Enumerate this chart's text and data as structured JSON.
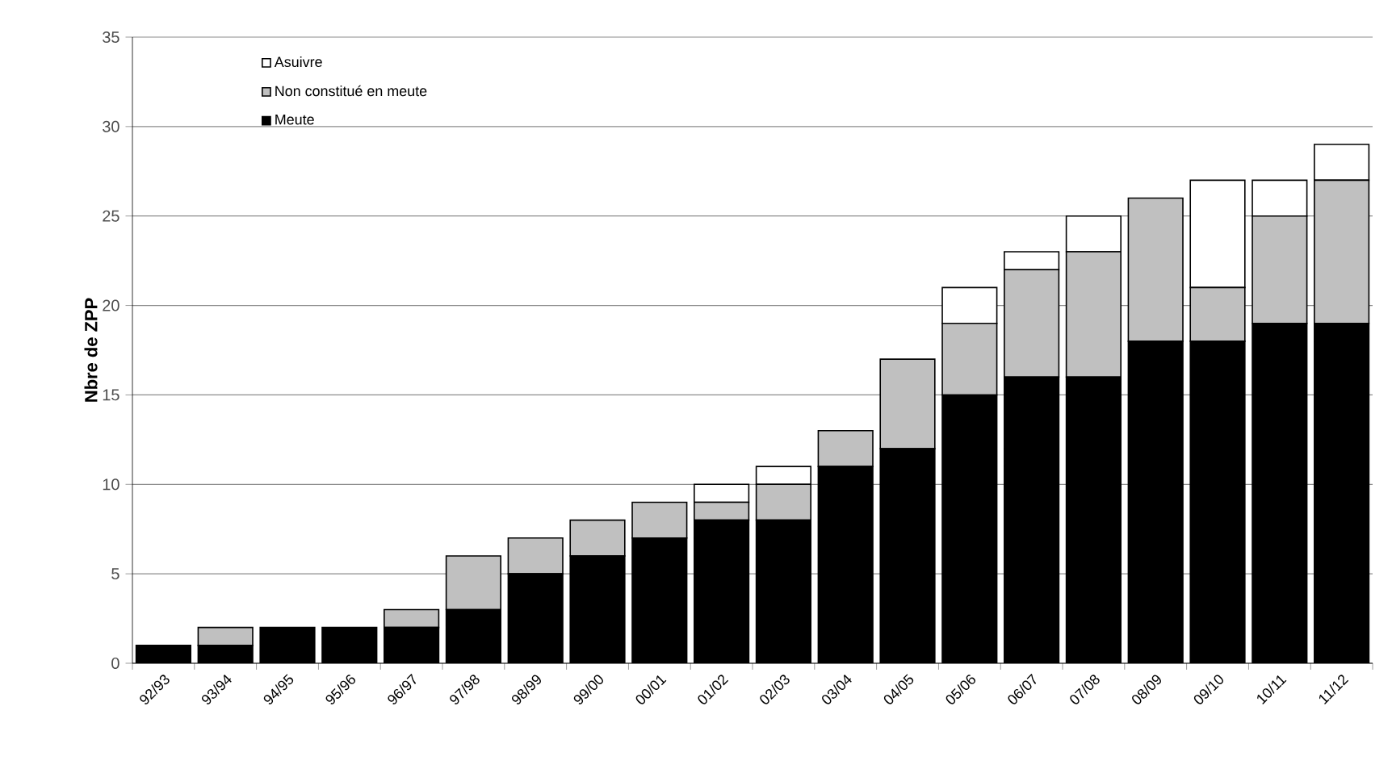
{
  "chart_data": {
    "type": "bar",
    "stacked": true,
    "ylabel": "Nbre de ZPP",
    "categories": [
      "92/93",
      "93/94",
      "94/95",
      "95/96",
      "96/97",
      "97/98",
      "98/99",
      "99/00",
      "00/01",
      "01/02",
      "02/03",
      "03/04",
      "04/05",
      "05/06",
      "06/07",
      "07/08",
      "08/09",
      "09/10",
      "10/11",
      "11/12"
    ],
    "series": [
      {
        "name": "Meute",
        "color": "#000000",
        "values": [
          1,
          1,
          2,
          2,
          2,
          3,
          5,
          6,
          7,
          8,
          8,
          11,
          12,
          15,
          16,
          16,
          18,
          18,
          19,
          19
        ]
      },
      {
        "name": "Non constitué en meute",
        "color": "#c0c0c0",
        "values": [
          0,
          1,
          0,
          0,
          1,
          3,
          2,
          2,
          2,
          1,
          2,
          2,
          5,
          4,
          6,
          7,
          8,
          3,
          6,
          8
        ]
      },
      {
        "name": "Asuivre",
        "color": "#ffffff",
        "values": [
          0,
          0,
          0,
          0,
          0,
          0,
          0,
          0,
          0,
          1,
          1,
          0,
          0,
          2,
          1,
          2,
          0,
          6,
          2,
          2
        ]
      }
    ],
    "ylim": [
      0,
      35
    ],
    "yticks": [
      0,
      5,
      10,
      15,
      20,
      25,
      30,
      35
    ],
    "grid": "y",
    "legend": "top left"
  }
}
